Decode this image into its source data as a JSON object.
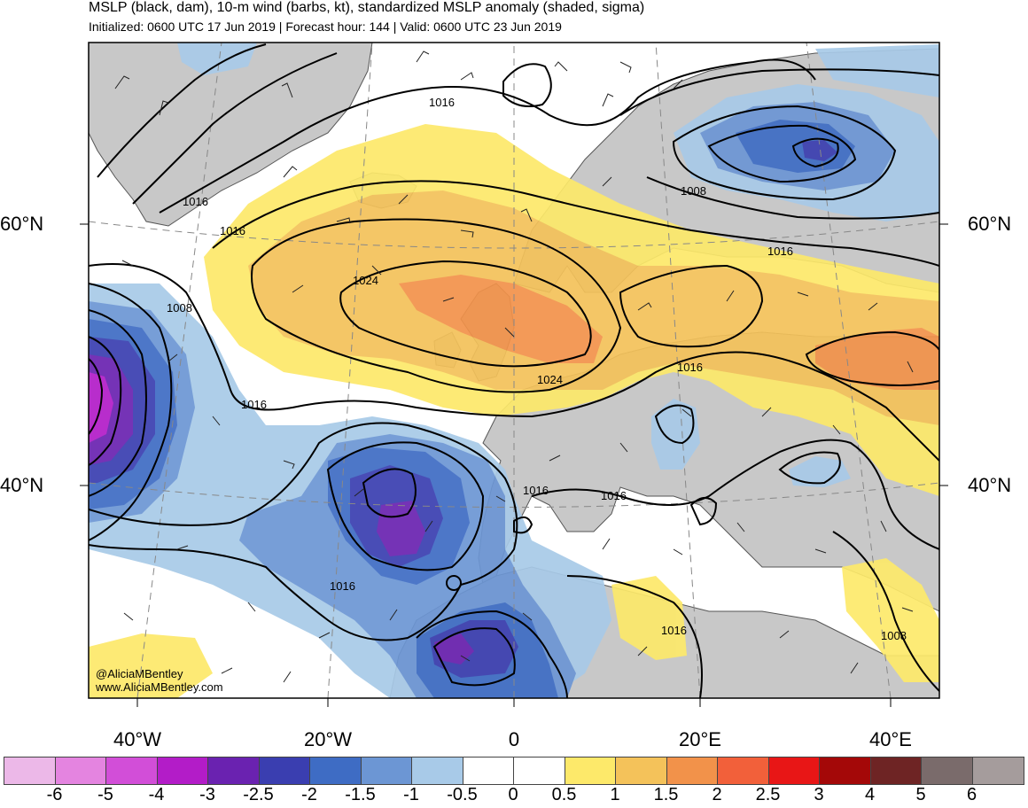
{
  "title": "MSLP (black, dam), 10-m wind (barbs, kt), standardized MSLP anomaly (shaded, sigma)",
  "subtitle": "Initialized: 0600 UTC 17 Jun 2019 | Forecast hour: 144 | Valid: 0600 UTC 23 Jun 2019",
  "lat_labels": [
    "60°N",
    "40°N"
  ],
  "lon_labels": [
    "40°W",
    "20°W",
    "0",
    "20°E",
    "40°E"
  ],
  "credits": [
    "@AliciaMBentley",
    "www.AliciaMBentley.com"
  ],
  "isobar_labels": [
    "1016",
    "1016",
    "1016",
    "1008",
    "1024",
    "1016",
    "1024",
    "1016",
    "1008",
    "1016",
    "1016",
    "1016",
    "1016",
    "1016",
    "1008"
  ],
  "colorbar": {
    "labels": [
      "-6",
      "-5",
      "-4",
      "-3",
      "-2.5",
      "-2",
      "-1.5",
      "-1",
      "-0.5",
      "0",
      "0.5",
      "1",
      "1.5",
      "2",
      "2.5",
      "3",
      "4",
      "5",
      "6"
    ],
    "colors": [
      "#ecb8e8",
      "#e484e0",
      "#d24ed8",
      "#b31cc8",
      "#6a22b0",
      "#3a3eb0",
      "#3e6cc4",
      "#6c96d4",
      "#a8cae8",
      "#ffffff",
      "#ffffff",
      "#fde96a",
      "#f4c25a",
      "#f2924a",
      "#f2603a",
      "#e81616",
      "#a40808",
      "#6e2424",
      "#7a6b6b",
      "#a59c9c"
    ]
  },
  "colors": {
    "land": "#c8c8c8",
    "coast": "#555555",
    "grid": "#888888",
    "isobar": "#000000"
  }
}
